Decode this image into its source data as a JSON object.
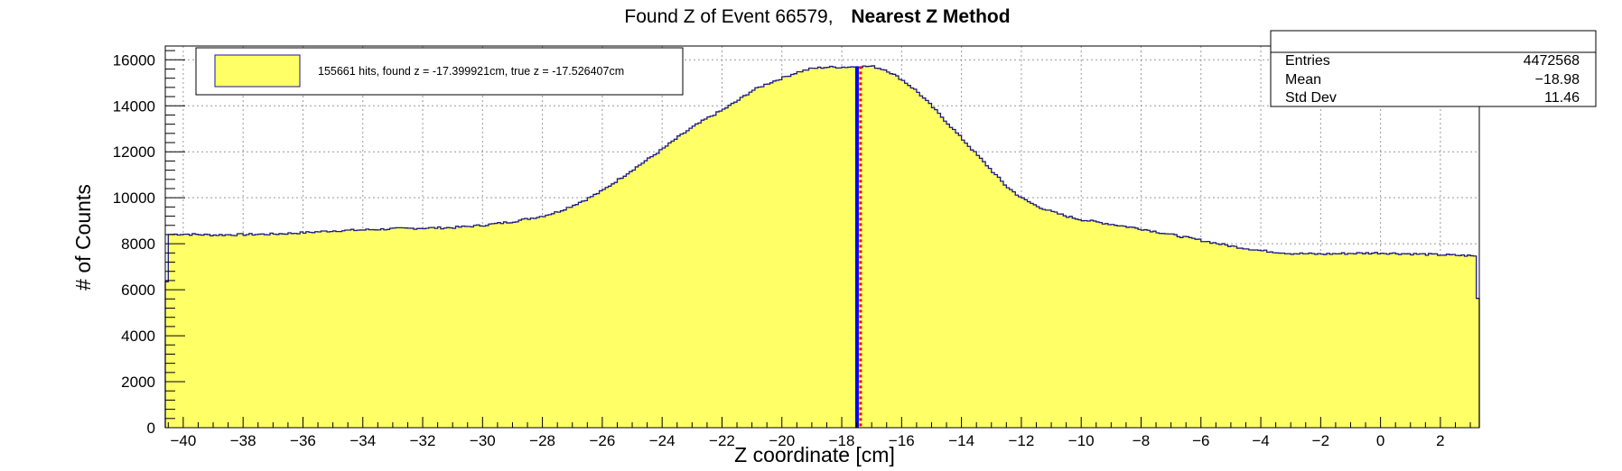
{
  "chart_data": {
    "type": "histogram",
    "title": "Found Z of Event 66579,",
    "title_bold": "Nearest Z Method",
    "xlabel": "Z coordinate [cm]",
    "ylabel": "# of Counts",
    "xlim": [
      -40.6,
      3.3
    ],
    "ylim": [
      0,
      16600
    ],
    "grid": true,
    "x_ticks": [
      -40,
      -38,
      -36,
      -34,
      -32,
      -30,
      -28,
      -26,
      -24,
      -22,
      -20,
      -18,
      -16,
      -14,
      -12,
      -10,
      -8,
      -6,
      -4,
      -2,
      0,
      2
    ],
    "x_tick_labels": [
      "−40",
      "−38",
      "−36",
      "−34",
      "−32",
      "−30",
      "−28",
      "−26",
      "−24",
      "−22",
      "−20",
      "−18",
      "−16",
      "−14",
      "−12",
      "−10",
      "−8",
      "−6",
      "−4",
      "−2",
      "0",
      "2"
    ],
    "y_ticks": [
      0,
      2000,
      4000,
      6000,
      8000,
      10000,
      12000,
      14000,
      16000
    ],
    "y_tick_labels": [
      "0",
      "2000",
      "4000",
      "6000",
      "8000",
      "10000",
      "12000",
      "14000",
      "16000"
    ],
    "fill_color": "#ffff66",
    "line_color": "#1a1a80",
    "series": [
      {
        "x": [
          -40.6,
          -40.5,
          -40,
          -39,
          -38,
          -37,
          -36,
          -35,
          -34,
          -33,
          -32,
          -31,
          -30,
          -29,
          -28,
          -27.5,
          -27,
          -26.5,
          -26,
          -25.5,
          -25,
          -24.5,
          -24,
          -23.5,
          -23,
          -22.5,
          -22,
          -21.5,
          -21,
          -20.5,
          -20,
          -19.5,
          -19,
          -18.5,
          -18,
          -17.5,
          -17,
          -16.5,
          -16,
          -15.5,
          -15,
          -14.5,
          -14,
          -13.5,
          -13,
          -12.5,
          -12,
          -11.5,
          -11,
          -10.5,
          -10,
          -9,
          -8,
          -7,
          -6,
          -5,
          -4,
          -3,
          -2,
          -1,
          0,
          1,
          2,
          3,
          3.2,
          3.3
        ],
        "y": [
          4300,
          8400,
          8420,
          8380,
          8400,
          8420,
          8480,
          8560,
          8600,
          8650,
          8680,
          8700,
          8800,
          8960,
          9200,
          9380,
          9650,
          9950,
          10300,
          10750,
          11200,
          11650,
          12100,
          12600,
          13050,
          13450,
          13800,
          14200,
          14650,
          14950,
          15200,
          15450,
          15620,
          15680,
          15680,
          15700,
          15720,
          15550,
          15150,
          14650,
          14000,
          13300,
          12600,
          11900,
          11200,
          10500,
          10000,
          9650,
          9400,
          9200,
          9050,
          8850,
          8650,
          8400,
          8150,
          7900,
          7700,
          7580,
          7550,
          7580,
          7600,
          7560,
          7520,
          7480,
          7450,
          3800
        ]
      }
    ],
    "markers": [
      {
        "name": "found z",
        "value": -17.399921,
        "color": "#0000ff"
      },
      {
        "name": "true z",
        "value": -17.526407,
        "color": "#ff0000"
      }
    ],
    "legend": {
      "position": "top-left",
      "entry": "155661 hits, found z = -17.399921cm, true z = -17.526407cm"
    },
    "stats": {
      "position": "top-right",
      "rows": [
        {
          "label": "Entries",
          "value": "4472568"
        },
        {
          "label": "Mean",
          "value": "−18.98"
        },
        {
          "label": "Std Dev",
          "value": "11.46"
        }
      ]
    }
  }
}
